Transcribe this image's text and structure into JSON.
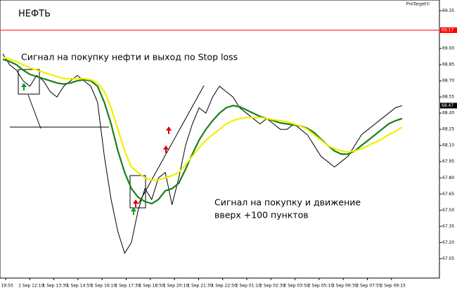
{
  "chart_data": {
    "type": "line",
    "title": "НЕФТЬ",
    "watermark": "ProTarget©",
    "annotations": [
      {
        "lines": [
          "Сигнал на покупку нефти и выход по Stop loss"
        ]
      },
      {
        "lines": [
          "Сигнал на покупку и движение",
          "вверх +100 пунктов"
        ]
      }
    ],
    "time_labels": [
      "19:50",
      "1 Sep 12:10",
      "1 Sep 13:30",
      "1 Sep 14:50",
      "1 Sep 16:10",
      "1 Sep 17:30",
      "1 Sep 18:50",
      "1 Sep 20:10",
      "1 Sep 21:30",
      "1 Sep 22:50",
      "2 Sep 01:10",
      "2 Sep 02:30",
      "2 Sep 03:50",
      "2 Sep 05:10",
      "2 Sep 06:30",
      "2 Sep 07:55",
      "2 Sep 09:15"
    ],
    "ylim": [
      66.87,
      69.45
    ],
    "yticks": [
      69.35,
      {
        "value": 69.0,
        "label": "69.00"
      },
      68.85,
      {
        "value": 68.7,
        "label": "68.70"
      },
      68.55,
      {
        "value": 68.4,
        "label": "68.40"
      },
      68.25,
      {
        "value": 68.1,
        "label": "68.10"
      },
      67.95,
      {
        "value": 67.8,
        "label": "67.80"
      },
      67.65,
      {
        "value": 67.5,
        "label": "67.50"
      },
      67.35,
      {
        "value": 67.2,
        "label": "67.20"
      },
      67.05
    ],
    "hline": {
      "value": 69.17,
      "color": "#ff0000"
    },
    "grid": false,
    "series": [
      {
        "color": "#000000",
        "values": [
          68.95,
          68.85,
          68.8,
          68.7,
          68.65,
          68.75,
          68.7,
          68.6,
          68.55,
          68.65,
          68.7,
          68.75,
          68.7,
          68.65,
          68.5,
          68.0,
          67.6,
          67.3,
          67.1,
          67.2,
          67.5,
          67.7,
          67.6,
          67.8,
          67.85,
          67.55,
          67.8,
          68.1,
          68.3,
          68.45,
          68.4,
          68.55,
          68.65,
          68.6,
          68.55,
          68.45,
          68.4,
          68.35,
          68.3,
          68.35,
          68.3,
          68.25,
          68.25,
          68.3,
          68.25,
          68.2,
          68.1,
          68.0,
          67.95,
          67.9,
          67.95,
          68.0,
          68.1,
          68.2,
          68.25,
          68.3,
          68.35,
          68.4,
          68.45,
          68.47
        ]
      },
      {
        "color": "#1a7f1a",
        "values": [
          68.9,
          68.88,
          68.85,
          68.8,
          68.76,
          68.74,
          68.72,
          68.7,
          68.68,
          68.67,
          68.68,
          68.7,
          68.71,
          68.7,
          68.65,
          68.5,
          68.3,
          68.05,
          67.85,
          67.7,
          67.62,
          67.58,
          67.56,
          67.6,
          67.68,
          67.7,
          67.75,
          67.88,
          68.02,
          68.15,
          68.25,
          68.33,
          68.4,
          68.45,
          68.47,
          68.46,
          68.43,
          68.4,
          68.37,
          68.35,
          68.33,
          68.31,
          68.3,
          68.29,
          68.28,
          68.26,
          68.22,
          68.16,
          68.1,
          68.05,
          68.02,
          68.02,
          68.05,
          68.1,
          68.15,
          68.2,
          68.25,
          68.3,
          68.33,
          68.35
        ]
      },
      {
        "color": "#f0f000",
        "values": [
          68.92,
          68.9,
          68.88,
          68.85,
          68.82,
          68.8,
          68.78,
          68.76,
          68.74,
          68.72,
          68.72,
          68.72,
          68.72,
          68.71,
          68.68,
          68.6,
          68.45,
          68.25,
          68.05,
          67.9,
          67.85,
          67.8,
          67.78,
          67.78,
          67.8,
          67.82,
          67.85,
          67.92,
          68.0,
          68.08,
          68.15,
          68.2,
          68.25,
          68.3,
          68.33,
          68.35,
          68.36,
          68.36,
          68.36,
          68.35,
          68.34,
          68.33,
          68.32,
          68.3,
          68.28,
          68.25,
          68.2,
          68.15,
          68.1,
          68.07,
          68.05,
          68.04,
          68.05,
          68.07,
          68.1,
          68.13,
          68.16,
          68.2,
          68.23,
          68.27
        ]
      }
    ]
  }
}
